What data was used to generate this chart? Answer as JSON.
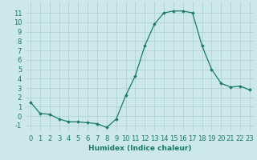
{
  "x": [
    0,
    1,
    2,
    3,
    4,
    5,
    6,
    7,
    8,
    9,
    10,
    11,
    12,
    13,
    14,
    15,
    16,
    17,
    18,
    19,
    20,
    21,
    22,
    23
  ],
  "y": [
    1.5,
    0.3,
    0.2,
    -0.3,
    -0.6,
    -0.6,
    -0.7,
    -0.8,
    -1.2,
    -0.3,
    2.2,
    4.3,
    7.5,
    9.8,
    11.0,
    11.2,
    11.2,
    11.0,
    7.5,
    5.0,
    3.5,
    3.1,
    3.2,
    2.8
  ],
  "xlabel": "Humidex (Indice chaleur)",
  "xlim": [
    -0.5,
    23.5
  ],
  "ylim": [
    -1.6,
    12.2
  ],
  "yticks": [
    -1,
    0,
    1,
    2,
    3,
    4,
    5,
    6,
    7,
    8,
    9,
    10,
    11
  ],
  "xticks": [
    0,
    1,
    2,
    3,
    4,
    5,
    6,
    7,
    8,
    9,
    10,
    11,
    12,
    13,
    14,
    15,
    16,
    17,
    18,
    19,
    20,
    21,
    22,
    23
  ],
  "line_color": "#1a7a6a",
  "marker": "D",
  "marker_size": 1.8,
  "bg_color": "#cce8e8",
  "grid_color": "#aacfcf",
  "xlabel_fontsize": 6.5,
  "tick_fontsize": 6
}
